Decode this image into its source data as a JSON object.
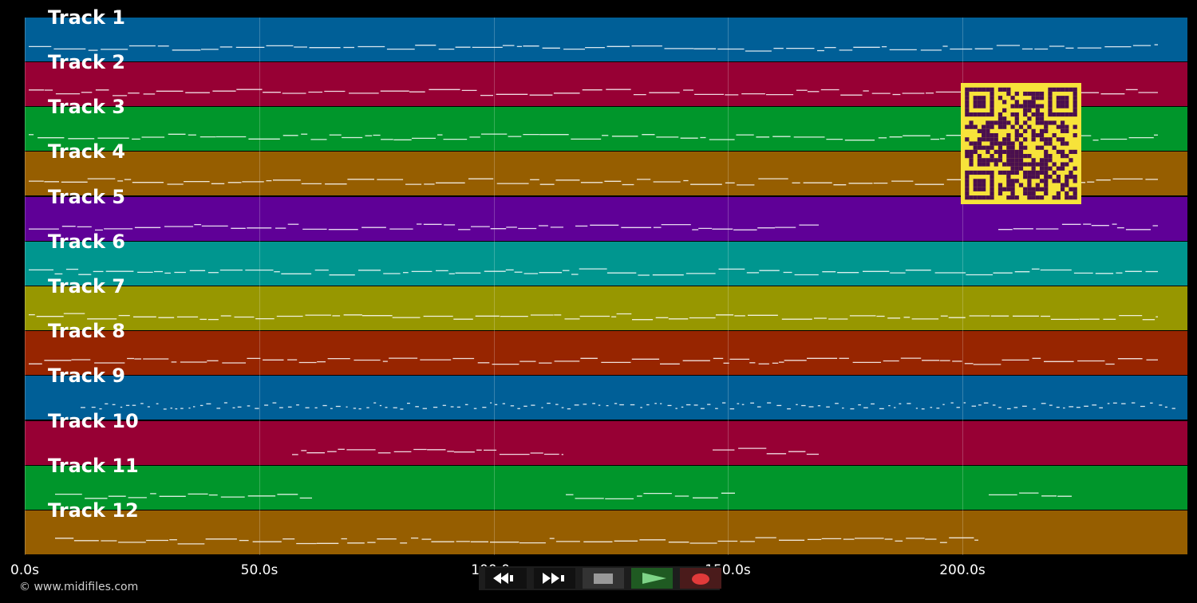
{
  "tracks": [
    {
      "label": "Track 1",
      "color": "#005f97"
    },
    {
      "label": "Track 2",
      "color": "#970034"
    },
    {
      "label": "Track 3",
      "color": "#00962b"
    },
    {
      "label": "Track 4",
      "color": "#965e00"
    },
    {
      "label": "Track 5",
      "color": "#5f0097"
    },
    {
      "label": "Track 6",
      "color": "#00968f"
    },
    {
      "label": "Track 7",
      "color": "#979700"
    },
    {
      "label": "Track 8",
      "color": "#972500"
    },
    {
      "label": "Track 9",
      "color": "#005f97"
    },
    {
      "label": "Track 10",
      "color": "#970034"
    },
    {
      "label": "Track 11",
      "color": "#00962b"
    },
    {
      "label": "Track 12",
      "color": "#965e00"
    }
  ],
  "timeline": {
    "ticks": [
      "0.0s",
      "50.0s",
      "100.0s",
      "150.0s",
      "200.0s"
    ],
    "max_seconds": 248
  },
  "controls": {
    "rewind": "rewind-icon",
    "fast_forward": "fast-forward-icon",
    "stop": "stop-icon",
    "play": "play-icon",
    "record": "record-icon"
  },
  "footer": {
    "copyright": "© www.midifiles.com"
  }
}
